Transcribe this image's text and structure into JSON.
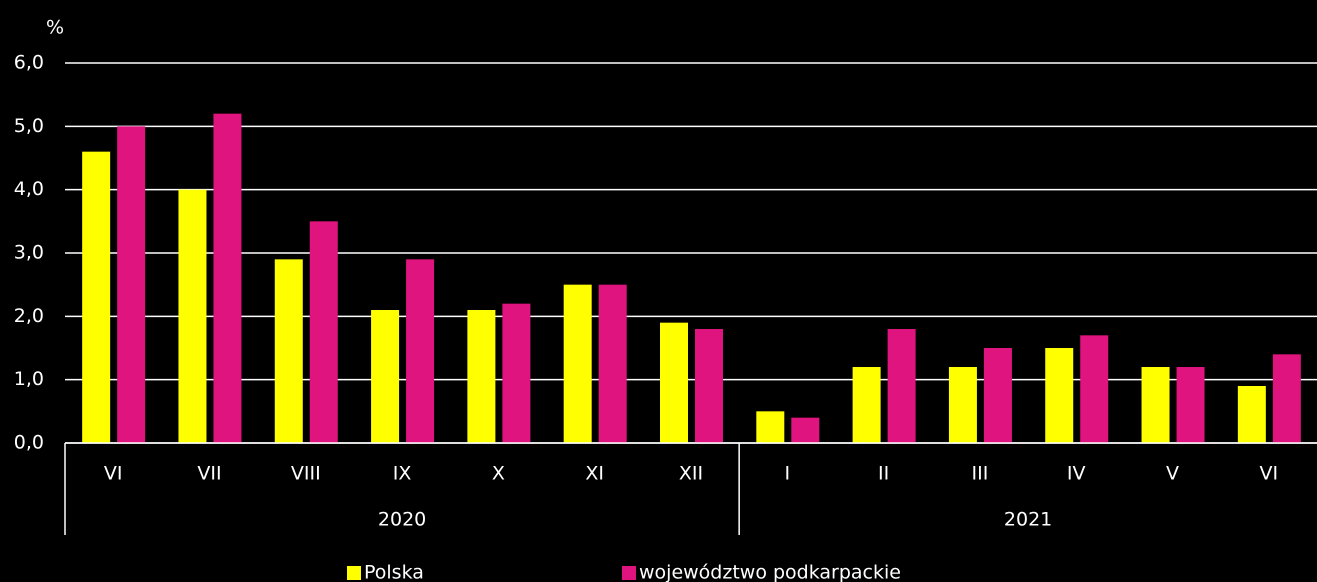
{
  "chart_data": {
    "type": "bar",
    "y_unit": "%",
    "groups": [
      {
        "label": "2020",
        "categories": [
          "VI",
          "VII",
          "VIII",
          "IX",
          "X",
          "XI",
          "XII"
        ]
      },
      {
        "label": "2021",
        "categories": [
          "I",
          "II",
          "III",
          "IV",
          "V",
          "VI"
        ]
      }
    ],
    "series": [
      {
        "name": "Polska",
        "color": "#ffff00",
        "values": [
          4.6,
          4.0,
          2.9,
          2.1,
          2.1,
          2.5,
          1.9,
          0.5,
          1.2,
          1.2,
          1.5,
          1.2,
          0.9
        ]
      },
      {
        "name": "województwo podkarpackie",
        "color": "#e0147f",
        "values": [
          5.0,
          5.2,
          3.5,
          2.9,
          2.2,
          2.5,
          1.8,
          0.4,
          1.8,
          1.5,
          1.7,
          1.2,
          1.4
        ]
      }
    ],
    "ylim": [
      0,
      6
    ],
    "yticks": [
      {
        "value": 0,
        "label": "0,0"
      },
      {
        "value": 1,
        "label": "1,0"
      },
      {
        "value": 2,
        "label": "2,0"
      },
      {
        "value": 3,
        "label": "3,0"
      },
      {
        "value": 4,
        "label": "4,0"
      },
      {
        "value": 5,
        "label": "5,0"
      },
      {
        "value": 6,
        "label": "6,0"
      }
    ],
    "grid": true,
    "legend_position": "bottom"
  }
}
